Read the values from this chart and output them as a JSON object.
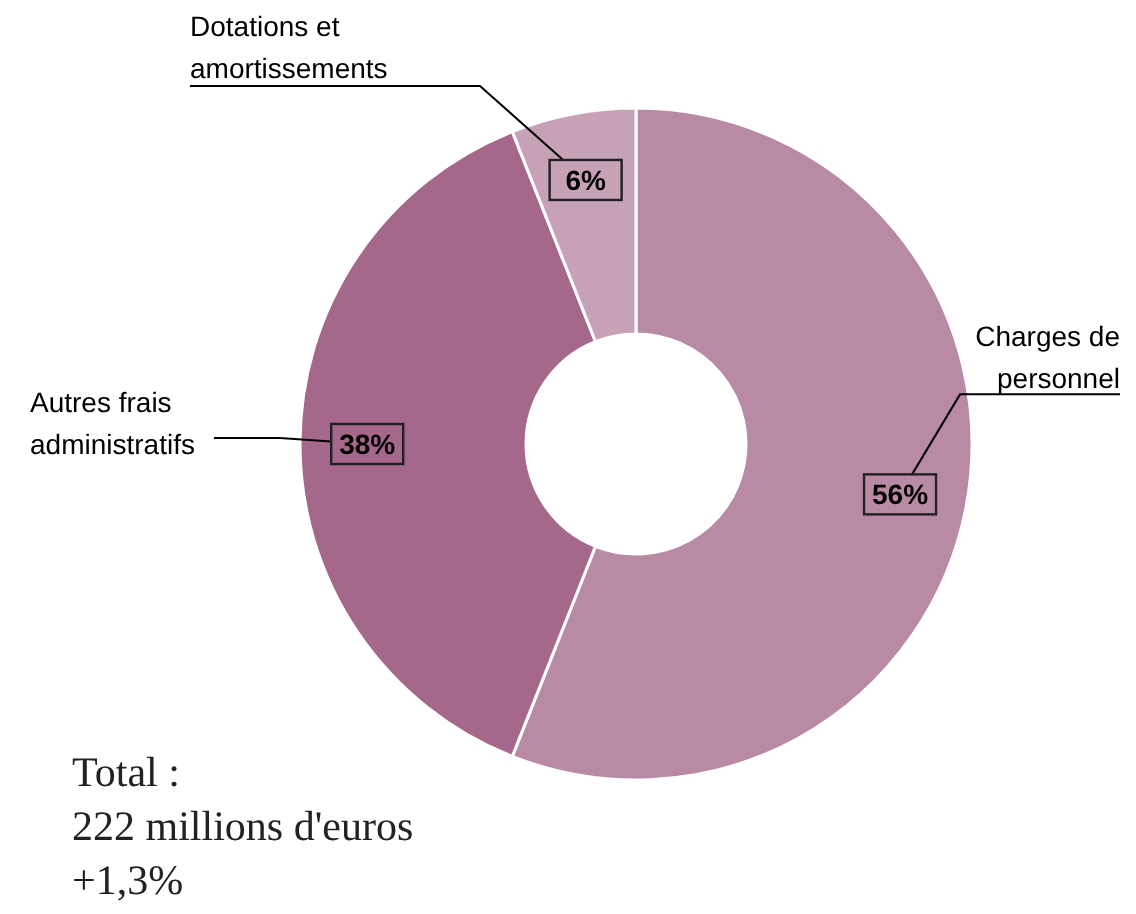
{
  "chart_data": {
    "type": "donut",
    "categories": [
      "Charges de personnel",
      "Autres frais administratifs",
      "Dotations et amortissements"
    ],
    "values": [
      56,
      38,
      6
    ],
    "colors": [
      "#b98aa4",
      "#a5678a",
      "#c7a2b6"
    ],
    "value_labels": [
      "56%",
      "38%",
      "6%"
    ],
    "annotations": [
      "Total :",
      "222 millions d'euros",
      "+1,3%"
    ]
  }
}
